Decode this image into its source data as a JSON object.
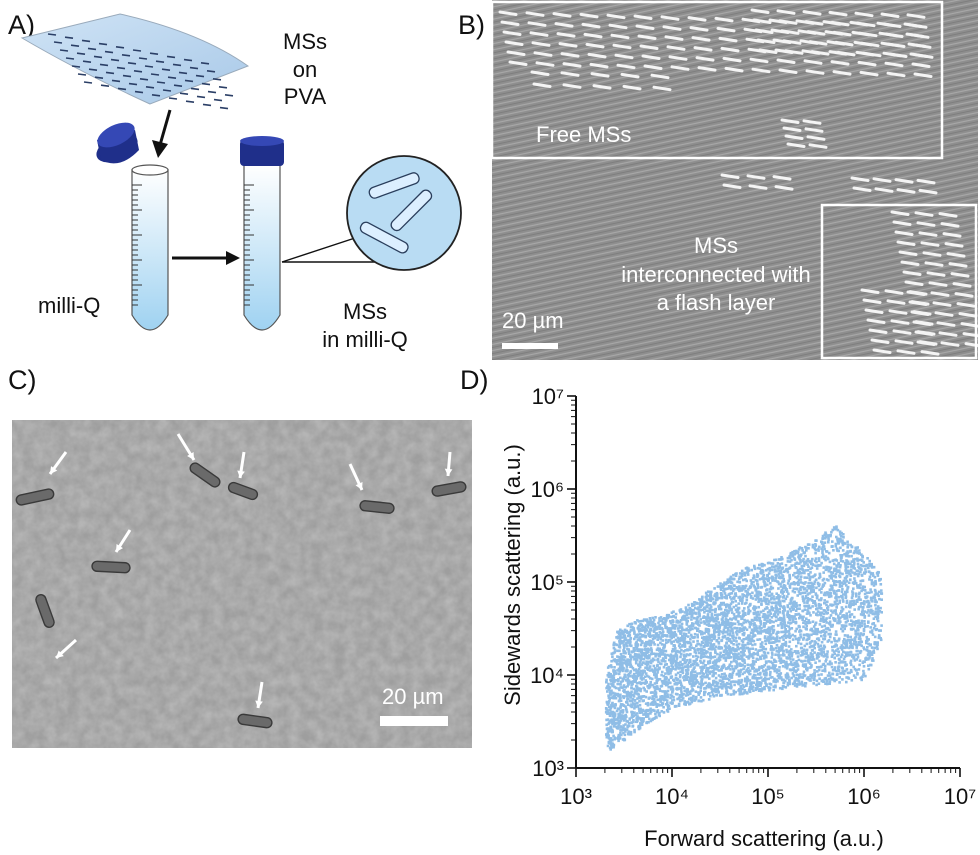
{
  "panels": {
    "a": {
      "label": "A)",
      "sheet_caption": [
        "MSs",
        "on PVA"
      ],
      "water_label": "milli-Q",
      "result_caption": [
        "MSs",
        "in milli-Q"
      ]
    },
    "b": {
      "label": "B)",
      "free_label": "Free MSs",
      "connected_label": [
        "MSs",
        "interconnected with",
        "a flash layer"
      ],
      "scale_bar": "20 µm"
    },
    "c": {
      "label": "C)",
      "scale_bar": "20 µm"
    },
    "d": {
      "label": "D)"
    }
  },
  "chart_data": {
    "type": "scatter",
    "title": "",
    "xlabel": "Forward scattering (a.u.)",
    "ylabel": "Sidewards scattering (a.u.)",
    "x_scale": "log",
    "y_scale": "log",
    "xlim": [
      1000,
      10000000
    ],
    "ylim": [
      1000,
      10000000
    ],
    "x_tick_labels": [
      "10^3",
      "10^4",
      "10^5",
      "10^6",
      "10^7"
    ],
    "y_tick_labels": [
      "10^3",
      "10^4",
      "10^5",
      "10^6",
      "10^7"
    ],
    "grid": false,
    "point_color": "#8fbde6",
    "series": [
      {
        "density_outline": {
          "x": [
            2000,
            2200,
            3000,
            5000,
            10000,
            30000,
            100000,
            300000,
            1000000,
            1500000,
            1500000,
            1000000,
            500000,
            300000,
            150000,
            60000,
            30000,
            15000,
            8000,
            4000,
            2500,
            2000
          ],
          "y": [
            1600,
            1600,
            2000,
            3000,
            4500,
            6000,
            7000,
            8000,
            9000,
            25000,
            120000,
            200000,
            420000,
            300000,
            200000,
            150000,
            100000,
            60000,
            45000,
            40000,
            30000,
            10000
          ]
        }
      }
    ]
  }
}
